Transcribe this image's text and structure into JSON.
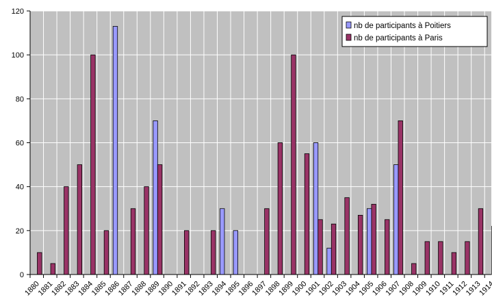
{
  "chart_data": {
    "type": "bar",
    "title": "",
    "xlabel": "",
    "ylabel": "",
    "ylim": [
      0,
      120
    ],
    "yticks": [
      0,
      20,
      40,
      60,
      80,
      100,
      120
    ],
    "grid": true,
    "legend_position": "top-right",
    "background_color": "#c0c0c0",
    "categories": [
      "1880",
      "1881",
      "1882",
      "1883",
      "1884",
      "1885",
      "1886",
      "1887",
      "1888",
      "1889",
      "1890",
      "1891",
      "1892",
      "1893",
      "1894",
      "1895",
      "1896",
      "1897",
      "1898",
      "1899",
      "1900",
      "1901",
      "1902",
      "1903",
      "1904",
      "1905",
      "1906",
      "1907",
      "1908",
      "1909",
      "1910",
      "1911",
      "1912",
      "1913",
      "1914"
    ],
    "series": [
      {
        "name": "nb de participants à Poitiers",
        "color": "#9999ff",
        "values": [
          null,
          null,
          null,
          null,
          null,
          null,
          113,
          null,
          null,
          70,
          null,
          null,
          null,
          null,
          30,
          20,
          null,
          null,
          null,
          null,
          null,
          60,
          12,
          null,
          null,
          30,
          null,
          50,
          null,
          null,
          null,
          null,
          null,
          null,
          null
        ]
      },
      {
        "name": "nb de participants à Paris",
        "color": "#993366",
        "values": [
          10,
          5,
          40,
          50,
          100,
          20,
          null,
          30,
          40,
          50,
          null,
          20,
          null,
          20,
          null,
          null,
          null,
          30,
          60,
          100,
          55,
          25,
          23,
          35,
          27,
          32,
          25,
          70,
          5,
          15,
          15,
          10,
          15,
          30,
          22
        ]
      }
    ]
  }
}
